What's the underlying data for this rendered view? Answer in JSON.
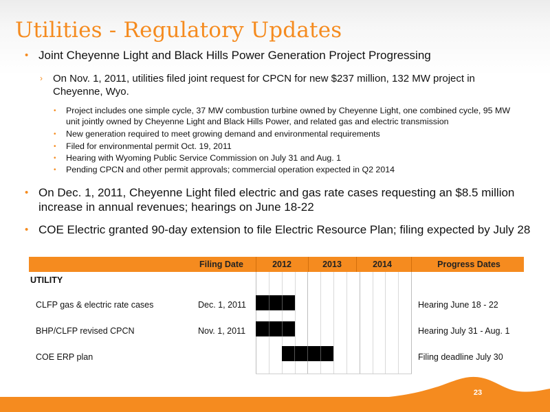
{
  "slide": {
    "title": "Utilities - Regulatory Updates",
    "page_number": "23"
  },
  "bullets": {
    "b1": "Joint Cheyenne Light and Black Hills Power Generation Project Progressing",
    "b1_sub": "On Nov. 1, 2011, utilities filed joint request for CPCN for new $237 million, 132 MW project in Cheyenne, Wyo.",
    "b1_details": [
      "Project includes one simple cycle, 37 MW combustion turbine owned by Cheyenne Light, one combined cycle, 95 MW unit jointly owned by Cheyenne Light and Black Hills Power, and related gas and electric transmission",
      "New generation required to meet growing demand and environmental requirements",
      "Filed for environmental permit Oct. 19, 2011",
      "Hearing with Wyoming Public Service Commission on July 31 and Aug. 1",
      "Pending CPCN and other permit approvals; commercial operation expected in Q2 2014"
    ],
    "b2": "On Dec. 1, 2011, Cheyenne Light filed electric and gas rate cases requesting an $8.5 million increase in annual revenues; hearings on June 18-22",
    "b3": "COE Electric granted 90-day extension to file Electric Resource Plan; filing expected by July 28"
  },
  "gantt": {
    "headers": {
      "filing_date": "Filing Date",
      "y2012": "2012",
      "y2013": "2013",
      "y2014": "2014",
      "progress": "Progress Dates"
    },
    "utility_label": "UTILITY",
    "rows": [
      {
        "name": "CLFP gas & electric rate cases",
        "filing_date": "Dec. 1, 2011",
        "progress": "Hearing June 18 - 22",
        "start_quarter": 0,
        "end_quarter": 3
      },
      {
        "name": "BHP/CLFP revised CPCN",
        "filing_date": "Nov. 1, 2011",
        "progress": "Hearing July 31 - Aug. 1",
        "start_quarter": 0,
        "end_quarter": 3
      },
      {
        "name": "COE ERP plan",
        "filing_date": "",
        "progress": "Filing deadline July 30",
        "start_quarter": 2,
        "end_quarter": 6
      }
    ]
  },
  "colors": {
    "accent": "#f58b1f",
    "bar": "#000000"
  }
}
